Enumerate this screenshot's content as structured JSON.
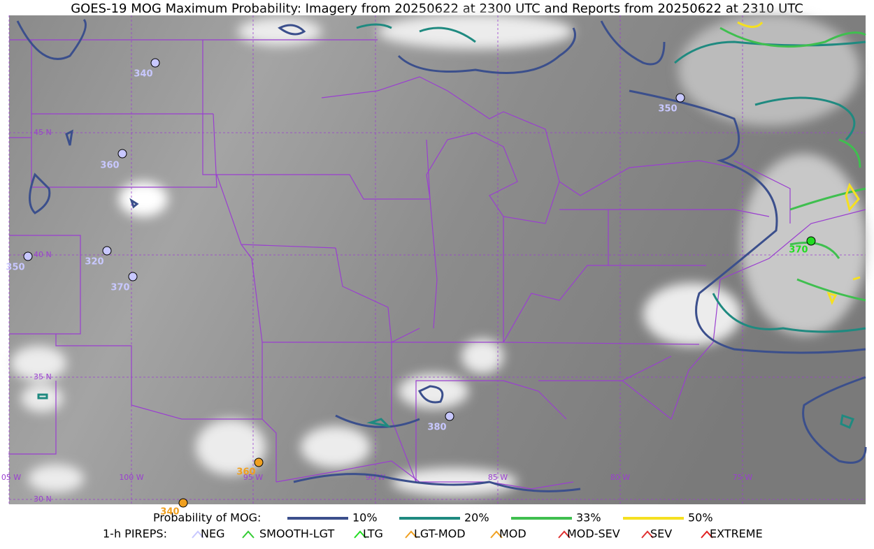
{
  "title": "GOES-19 MOG Maximum Probability: Imagery from 20250622 at 2300 UTC and Reports from 20250622 at 2310 UTC",
  "latitude_labels": [
    "45 N",
    "40 N",
    "35 N",
    "30 N"
  ],
  "longitude_labels": [
    "05 W",
    "100 W",
    "95 W",
    "90 W",
    "85 W",
    "80 W",
    "75 W"
  ],
  "pireps": [
    {
      "label": "340",
      "color": "#c8c8ff"
    },
    {
      "label": "360",
      "color": "#c8c8ff"
    },
    {
      "label": "350",
      "color": "#c8c8ff"
    },
    {
      "label": "350",
      "color": "#c8c8ff"
    },
    {
      "label": "320",
      "color": "#c8c8ff"
    },
    {
      "label": "370",
      "color": "#c8c8ff"
    },
    {
      "label": "380",
      "color": "#c8c8ff"
    },
    {
      "label": "360",
      "color": "#f0a020"
    },
    {
      "label": "340",
      "color": "#f0a020"
    },
    {
      "label": "370",
      "color": "#22dd22"
    }
  ],
  "legend": {
    "probability": {
      "title": "Probability of MOG:",
      "levels": [
        {
          "label": "10%",
          "color": "#3b4f8c"
        },
        {
          "label": "20%",
          "color": "#1f8a80"
        },
        {
          "label": "33%",
          "color": "#3fbf4f"
        },
        {
          "label": "50%",
          "color": "#f5e020"
        }
      ]
    },
    "pireps": {
      "title": "1-h PIREPS:",
      "types": [
        {
          "label": "NEG",
          "color": "#c8c8ff"
        },
        {
          "label": "SMOOTH-LGT",
          "color": "#33cc33"
        },
        {
          "label": "LTG",
          "color": "#22dd22"
        },
        {
          "label": "LGT-MOD",
          "color": "#f0a020"
        },
        {
          "label": "MOD",
          "color": "#f0a020"
        },
        {
          "label": "MOD-SEV",
          "color": "#e03030"
        },
        {
          "label": "SEV",
          "color": "#e03030"
        },
        {
          "label": "EXTREME",
          "color": "#e02020"
        }
      ]
    }
  }
}
